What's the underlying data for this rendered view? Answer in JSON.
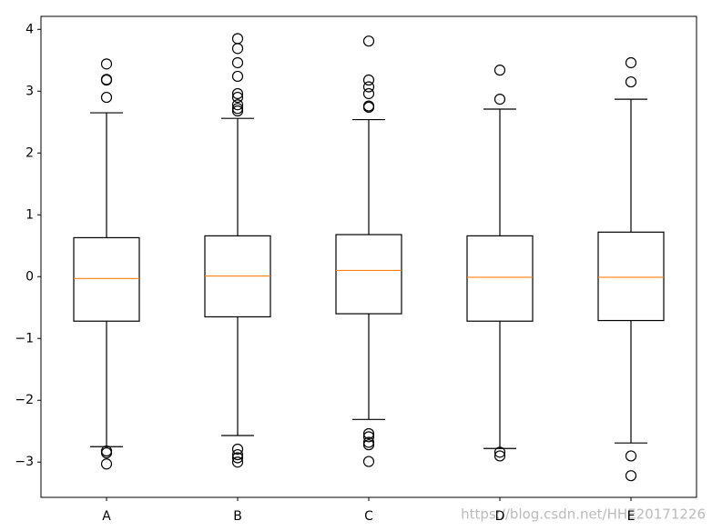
{
  "chart_data": {
    "type": "box",
    "categories": [
      "A",
      "B",
      "C",
      "D",
      "E"
    ],
    "boxes": [
      {
        "whislo": -2.75,
        "q1": -0.72,
        "med": -0.03,
        "q3": 0.63,
        "whishi": 2.65,
        "fliers": [
          3.44,
          3.19,
          3.18,
          2.9,
          -2.82,
          -2.85,
          -3.03
        ]
      },
      {
        "whislo": -2.57,
        "q1": -0.65,
        "med": 0.01,
        "q3": 0.66,
        "whishi": 2.56,
        "fliers": [
          3.85,
          3.69,
          3.46,
          3.24,
          2.96,
          2.9,
          2.78,
          2.72,
          2.68,
          -2.79,
          -2.88,
          -2.93,
          -3.0
        ]
      },
      {
        "whislo": -2.31,
        "q1": -0.6,
        "med": 0.1,
        "q3": 0.68,
        "whishi": 2.54,
        "fliers": [
          3.81,
          3.18,
          3.07,
          2.96,
          2.76,
          2.74,
          -2.54,
          -2.59,
          -2.68,
          -2.72,
          -2.99
        ]
      },
      {
        "whislo": -2.78,
        "q1": -0.72,
        "med": -0.01,
        "q3": 0.66,
        "whishi": 2.71,
        "fliers": [
          3.34,
          2.87,
          -2.84,
          -2.9
        ]
      },
      {
        "whislo": -2.69,
        "q1": -0.71,
        "med": -0.01,
        "q3": 0.72,
        "whishi": 2.87,
        "fliers": [
          3.46,
          3.15,
          -2.9,
          -3.22
        ]
      }
    ],
    "color": "#000000",
    "median_color": "#ff7f0e",
    "ylim": [
      -3.57,
      4.21
    ],
    "yticks": [
      {
        "value": -3,
        "label": "−3"
      },
      {
        "value": -2,
        "label": "−2"
      },
      {
        "value": -1,
        "label": "−1"
      },
      0,
      1,
      2,
      3,
      4
    ],
    "grid": false,
    "watermark": "https://blog.csdn.net/HHE20171226"
  }
}
